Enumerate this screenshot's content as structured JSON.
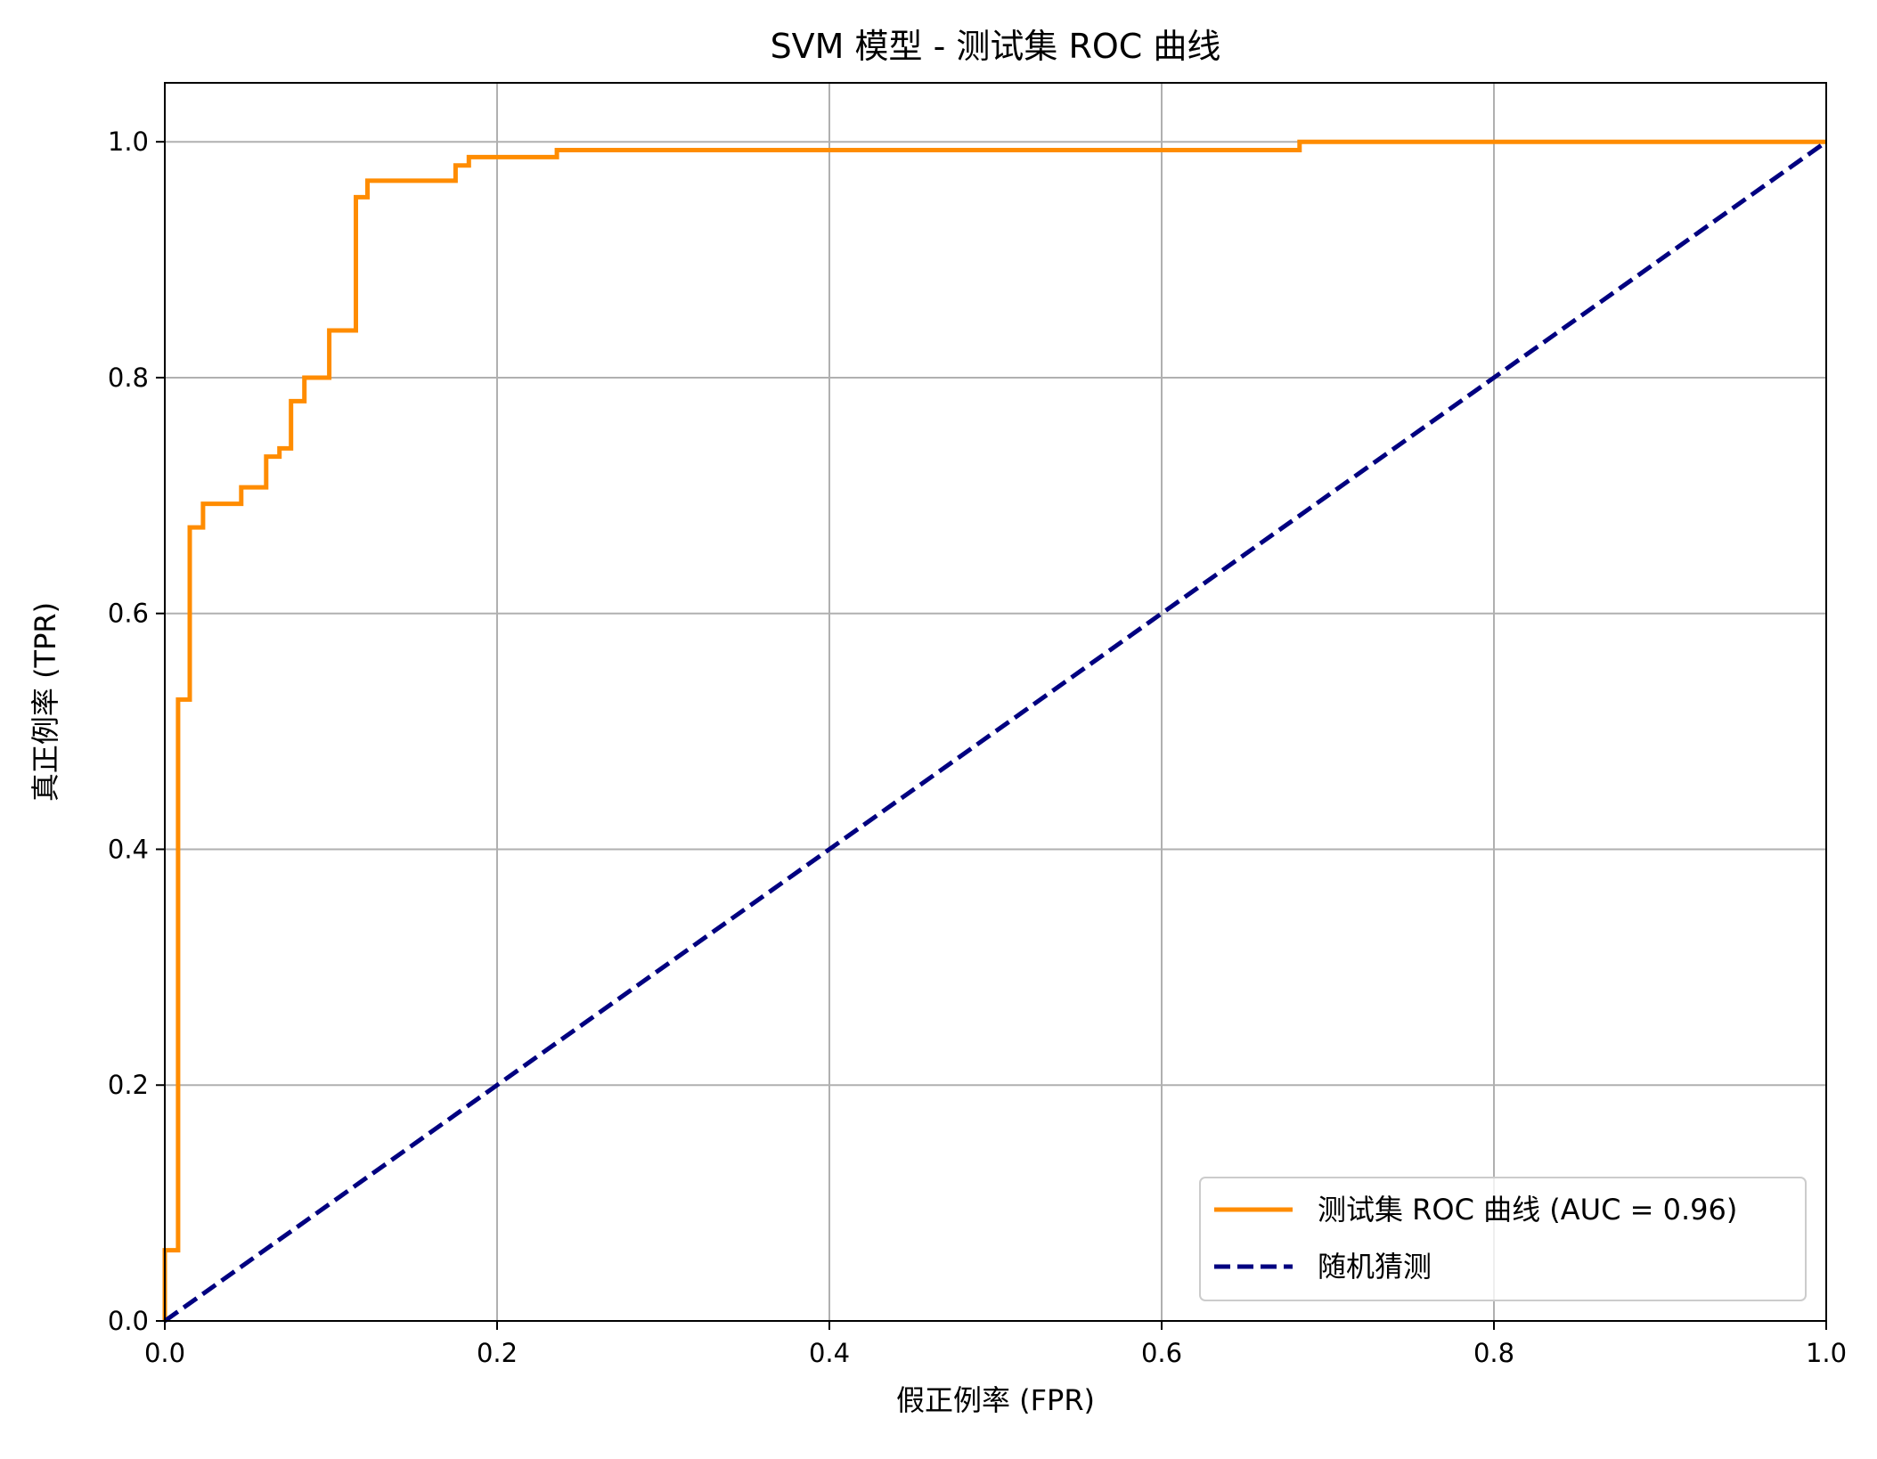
{
  "chart_data": {
    "type": "line",
    "title": "SVM 模型 - 测试集 ROC 曲线",
    "xlabel": "假正例率 (FPR)",
    "ylabel": "真正例率 (TPR)",
    "xlim": [
      0.0,
      1.0
    ],
    "ylim": [
      0.0,
      1.05
    ],
    "xticks": [
      "0.0",
      "0.2",
      "0.4",
      "0.6",
      "0.8",
      "1.0"
    ],
    "yticks": [
      "0.0",
      "0.2",
      "0.4",
      "0.6",
      "0.8",
      "1.0"
    ],
    "grid": true,
    "legend_position": "lower-right",
    "series": [
      {
        "name": "测试集 ROC 曲线 (AUC = 0.96)",
        "color": "#ff8c00",
        "style": "solid",
        "x": [
          0.0,
          0.0,
          0.008,
          0.008,
          0.015,
          0.015,
          0.023,
          0.023,
          0.046,
          0.046,
          0.061,
          0.061,
          0.069,
          0.069,
          0.076,
          0.076,
          0.084,
          0.084,
          0.099,
          0.099,
          0.115,
          0.115,
          0.122,
          0.122,
          0.175,
          0.175,
          0.183,
          0.183,
          0.236,
          0.236,
          0.683,
          0.683,
          1.0
        ],
        "y": [
          0.0,
          0.06,
          0.06,
          0.527,
          0.527,
          0.673,
          0.673,
          0.693,
          0.693,
          0.707,
          0.707,
          0.733,
          0.733,
          0.74,
          0.74,
          0.78,
          0.78,
          0.8,
          0.8,
          0.84,
          0.84,
          0.953,
          0.953,
          0.967,
          0.967,
          0.98,
          0.98,
          0.987,
          0.987,
          0.993,
          0.993,
          1.0,
          1.0
        ]
      },
      {
        "name": "随机猜测",
        "color": "#000080",
        "style": "dashed",
        "x": [
          0.0,
          1.0
        ],
        "y": [
          0.0,
          1.0
        ]
      }
    ]
  }
}
